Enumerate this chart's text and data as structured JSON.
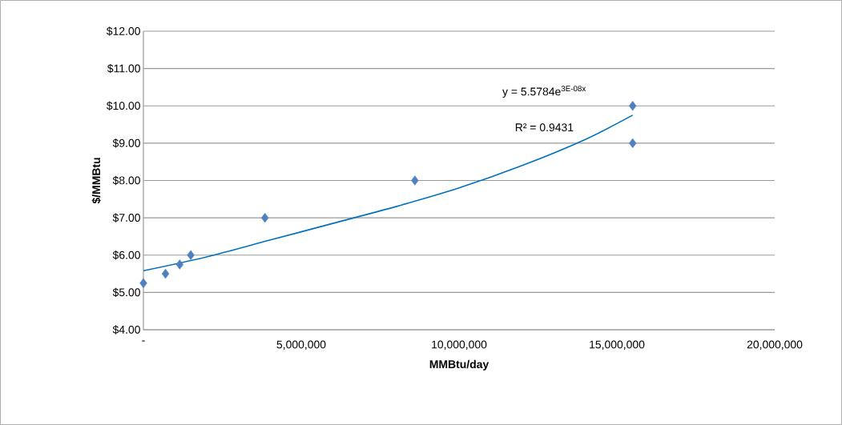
{
  "chart_data": {
    "type": "scatter",
    "xlabel": "MMBtu/day",
    "ylabel": "$/MMBtu",
    "series": [
      {
        "color": "#4f81bd",
        "marker": "diamond",
        "x": [
          0,
          700000,
          1150000,
          1500000,
          3850000,
          8600000,
          15500000,
          15500000
        ],
        "values": [
          5.25,
          5.5,
          5.75,
          6.0,
          7.0,
          8.0,
          10.0,
          9.0
        ]
      },
      {
        "type": "line",
        "color": "#0070c0",
        "marker": "none",
        "x": [
          0,
          2000000,
          4000000,
          6000000,
          8000000,
          10000000,
          12000000,
          14000000,
          15500000
        ],
        "values": [
          5.58,
          5.95,
          6.4,
          6.85,
          7.3,
          7.8,
          8.4,
          9.1,
          9.75
        ]
      }
    ],
    "xlim": [
      0,
      20000000
    ],
    "xticks": [
      {
        "value": 0,
        "label": "-"
      },
      {
        "value": 5000000,
        "label": "5,000,000"
      },
      {
        "value": 10000000,
        "label": "10,000,000"
      },
      {
        "value": 15000000,
        "label": "15,000,000"
      },
      {
        "value": 20000000,
        "label": "20,000,000"
      }
    ],
    "ylim": [
      4,
      12
    ],
    "yticks": [
      {
        "value": 4,
        "label": "$4.00"
      },
      {
        "value": 5,
        "label": "$5.00"
      },
      {
        "value": 6,
        "label": "$6.00"
      },
      {
        "value": 7,
        "label": "$7.00"
      },
      {
        "value": 8,
        "label": "$8.00"
      },
      {
        "value": 9,
        "label": "$9.00"
      },
      {
        "value": 10,
        "label": "$10.00"
      },
      {
        "value": 11,
        "label": "$11.00"
      },
      {
        "value": 12,
        "label": "$12.00"
      }
    ],
    "grid": "y",
    "annotations": [
      "y = 5.5784e$^{3E-08x}$",
      "R² = 0.9431"
    ]
  }
}
